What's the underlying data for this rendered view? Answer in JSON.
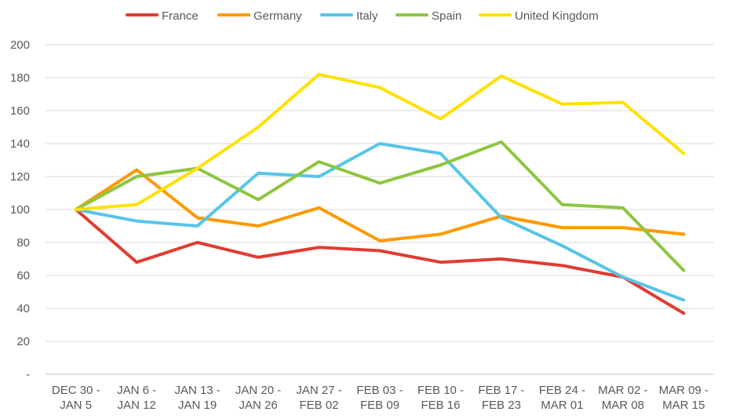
{
  "chart_data": {
    "type": "line",
    "title": "",
    "xlabel": "",
    "ylabel": "",
    "ylim": [
      0,
      200
    ],
    "yticks": [
      0,
      20,
      40,
      60,
      80,
      100,
      120,
      140,
      160,
      180,
      200
    ],
    "ytick_labels": [
      "-",
      "20",
      "40",
      "60",
      "80",
      "100",
      "120",
      "140",
      "160",
      "180",
      "200"
    ],
    "grid": "horizontal",
    "legend_position": "top",
    "categories": [
      [
        "DEC 30 -",
        "JAN 5"
      ],
      [
        "JAN 6 -",
        "JAN 12"
      ],
      [
        "JAN 13 -",
        "JAN 19"
      ],
      [
        "JAN 20 -",
        "JAN 26"
      ],
      [
        "JAN 27 -",
        "FEB 02"
      ],
      [
        "FEB 03 -",
        "FEB 09"
      ],
      [
        "FEB 10 -",
        "FEB 16"
      ],
      [
        "FEB 17 -",
        "FEB 23"
      ],
      [
        "FEB 24 -",
        "MAR 01"
      ],
      [
        "MAR 02 -",
        "MAR 08"
      ],
      [
        "MAR 09 -",
        "MAR 15"
      ]
    ],
    "series": [
      {
        "name": "France",
        "color": "#e03c31",
        "values": [
          100,
          68,
          80,
          71,
          77,
          75,
          68,
          70,
          66,
          59,
          37
        ]
      },
      {
        "name": "Germany",
        "color": "#ff9900",
        "values": [
          100,
          124,
          95,
          90,
          101,
          81,
          85,
          96,
          89,
          89,
          85
        ]
      },
      {
        "name": "Italy",
        "color": "#56c5e8",
        "values": [
          100,
          93,
          90,
          122,
          120,
          140,
          134,
          95,
          78,
          59,
          45
        ]
      },
      {
        "name": "Spain",
        "color": "#8dc63f",
        "values": [
          100,
          120,
          125,
          106,
          129,
          116,
          127,
          141,
          103,
          101,
          63
        ]
      },
      {
        "name": "United Kingdom",
        "color": "#ffe100",
        "values": [
          100,
          103,
          125,
          150,
          182,
          174,
          155,
          181,
          164,
          165,
          134
        ]
      }
    ]
  }
}
